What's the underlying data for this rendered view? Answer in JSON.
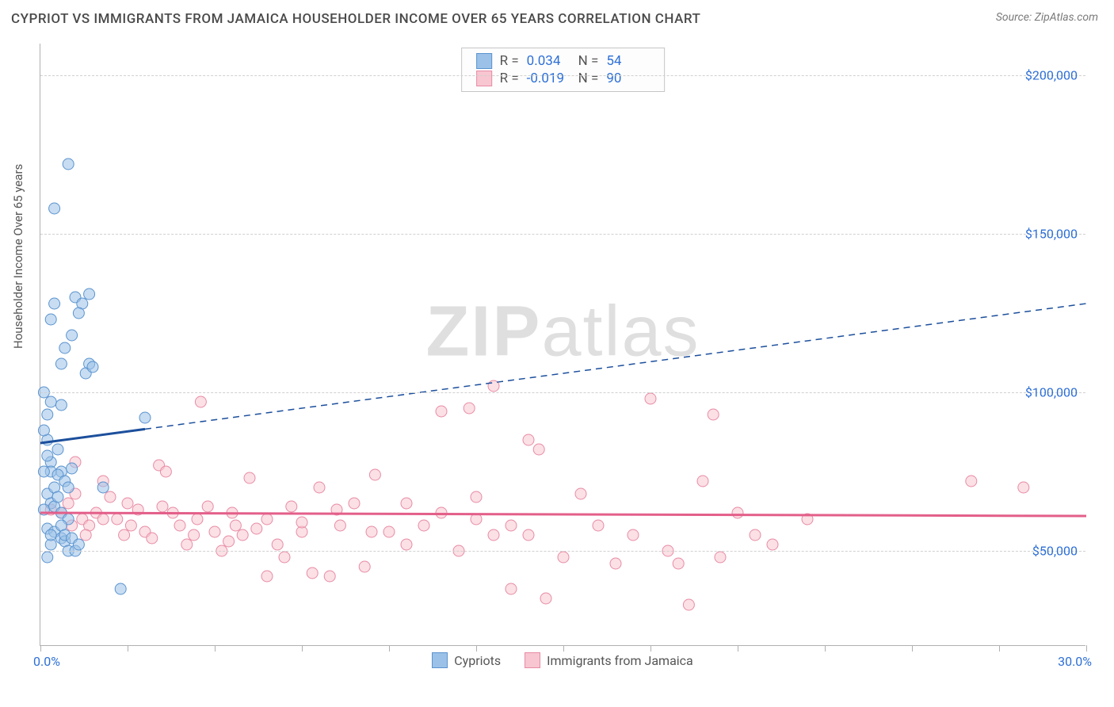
{
  "header": {
    "title": "CYPRIOT VS IMMIGRANTS FROM JAMAICA HOUSEHOLDER INCOME OVER 65 YEARS CORRELATION CHART",
    "source_prefix": "Source: ",
    "source_name": "ZipAtlas.com"
  },
  "axes": {
    "y_label": "Householder Income Over 65 years",
    "x_min_label": "0.0%",
    "x_max_label": "30.0%",
    "xlim": [
      0,
      30
    ],
    "ylim": [
      20000,
      210000
    ],
    "y_ticks": [
      50000,
      100000,
      150000,
      200000
    ],
    "y_tick_labels": [
      "$50,000",
      "$100,000",
      "$150,000",
      "$200,000"
    ],
    "x_tick_positions": [
      0,
      2.5,
      5,
      7.5,
      10,
      12.5,
      15,
      17.5,
      20,
      22.5,
      25,
      27.5,
      30
    ],
    "grid_color": "#d0d0d0",
    "axis_color": "#b0b0b0",
    "tick_label_color": "#2d6fd6"
  },
  "watermark": {
    "part1": "ZIP",
    "part2": "atlas"
  },
  "series": {
    "a": {
      "name": "Cypriots",
      "fill": "#9bc1e8",
      "stroke": "#5a93cf",
      "line_stroke": "#1c4f9c",
      "r_label": "R =",
      "n_label": "N =",
      "r_value": "0.034",
      "n_value": "54",
      "trend": {
        "x1": 0,
        "y1": 84000,
        "x2": 30,
        "y2": 128000,
        "solid_until_x": 3.0
      },
      "points": [
        [
          0.8,
          172000
        ],
        [
          0.4,
          158000
        ],
        [
          0.2,
          85000
        ],
        [
          0.6,
          75000
        ],
        [
          0.3,
          78000
        ],
        [
          1.0,
          130000
        ],
        [
          1.2,
          128000
        ],
        [
          1.4,
          131000
        ],
        [
          1.1,
          125000
        ],
        [
          0.9,
          118000
        ],
        [
          0.4,
          128000
        ],
        [
          0.3,
          123000
        ],
        [
          0.7,
          114000
        ],
        [
          0.6,
          109000
        ],
        [
          1.4,
          109000
        ],
        [
          1.3,
          106000
        ],
        [
          0.1,
          100000
        ],
        [
          0.3,
          97000
        ],
        [
          0.6,
          96000
        ],
        [
          0.2,
          93000
        ],
        [
          0.1,
          88000
        ],
        [
          0.5,
          82000
        ],
        [
          0.2,
          80000
        ],
        [
          0.3,
          75000
        ],
        [
          0.5,
          74000
        ],
        [
          0.7,
          72000
        ],
        [
          0.8,
          70000
        ],
        [
          0.2,
          68000
        ],
        [
          0.3,
          65000
        ],
        [
          0.4,
          64000
        ],
        [
          0.1,
          63000
        ],
        [
          0.6,
          62000
        ],
        [
          0.8,
          60000
        ],
        [
          0.2,
          57000
        ],
        [
          0.4,
          56000
        ],
        [
          0.6,
          54000
        ],
        [
          0.7,
          53000
        ],
        [
          0.3,
          52000
        ],
        [
          0.8,
          50000
        ],
        [
          1.0,
          50000
        ],
        [
          0.2,
          48000
        ],
        [
          0.9,
          76000
        ],
        [
          1.5,
          108000
        ],
        [
          1.8,
          70000
        ],
        [
          3.0,
          92000
        ],
        [
          2.3,
          38000
        ],
        [
          0.1,
          75000
        ],
        [
          0.4,
          70000
        ],
        [
          0.5,
          67000
        ],
        [
          0.6,
          58000
        ],
        [
          0.3,
          55000
        ],
        [
          0.7,
          55000
        ],
        [
          0.9,
          54000
        ],
        [
          1.1,
          52000
        ]
      ]
    },
    "b": {
      "name": "Immigrants from Jamaica",
      "fill": "#f7c6d0",
      "stroke": "#e88ba5",
      "line_stroke": "#e35f8a",
      "r_label": "R =",
      "n_label": "N =",
      "r_value": "-0.019",
      "n_value": "90",
      "trend": {
        "x1": 0,
        "y1": 62000,
        "x2": 30,
        "y2": 61000,
        "solid_until_x": 30
      },
      "points": [
        [
          0.3,
          63000
        ],
        [
          0.6,
          62000
        ],
        [
          0.8,
          65000
        ],
        [
          1.0,
          68000
        ],
        [
          1.2,
          60000
        ],
        [
          1.4,
          58000
        ],
        [
          1.6,
          62000
        ],
        [
          1.8,
          72000
        ],
        [
          2.0,
          67000
        ],
        [
          2.2,
          60000
        ],
        [
          2.4,
          55000
        ],
        [
          2.6,
          58000
        ],
        [
          2.8,
          63000
        ],
        [
          3.0,
          56000
        ],
        [
          3.2,
          54000
        ],
        [
          3.4,
          77000
        ],
        [
          3.6,
          75000
        ],
        [
          3.8,
          62000
        ],
        [
          4.0,
          58000
        ],
        [
          4.2,
          52000
        ],
        [
          4.4,
          55000
        ],
        [
          4.6,
          97000
        ],
        [
          4.8,
          64000
        ],
        [
          5.0,
          56000
        ],
        [
          5.2,
          50000
        ],
        [
          5.4,
          53000
        ],
        [
          5.6,
          58000
        ],
        [
          5.8,
          55000
        ],
        [
          6.0,
          73000
        ],
        [
          6.2,
          57000
        ],
        [
          6.5,
          42000
        ],
        [
          6.8,
          52000
        ],
        [
          7.0,
          48000
        ],
        [
          7.2,
          64000
        ],
        [
          7.5,
          56000
        ],
        [
          7.8,
          43000
        ],
        [
          8.0,
          70000
        ],
        [
          8.3,
          42000
        ],
        [
          8.6,
          58000
        ],
        [
          9.0,
          65000
        ],
        [
          9.3,
          45000
        ],
        [
          9.6,
          74000
        ],
        [
          10.0,
          56000
        ],
        [
          10.5,
          65000
        ],
        [
          11.0,
          58000
        ],
        [
          11.5,
          94000
        ],
        [
          12.0,
          50000
        ],
        [
          12.3,
          95000
        ],
        [
          12.5,
          60000
        ],
        [
          13.0,
          102000
        ],
        [
          13.0,
          55000
        ],
        [
          13.5,
          38000
        ],
        [
          14.0,
          85000
        ],
        [
          14.0,
          55000
        ],
        [
          14.3,
          82000
        ],
        [
          14.5,
          35000
        ],
        [
          15.0,
          48000
        ],
        [
          15.5,
          68000
        ],
        [
          16.0,
          58000
        ],
        [
          16.5,
          46000
        ],
        [
          17.0,
          55000
        ],
        [
          17.5,
          98000
        ],
        [
          18.0,
          50000
        ],
        [
          18.3,
          46000
        ],
        [
          18.6,
          33000
        ],
        [
          19.0,
          72000
        ],
        [
          19.3,
          93000
        ],
        [
          19.5,
          48000
        ],
        [
          20.0,
          62000
        ],
        [
          20.5,
          55000
        ],
        [
          21.0,
          52000
        ],
        [
          22.0,
          60000
        ],
        [
          26.7,
          72000
        ],
        [
          28.2,
          70000
        ],
        [
          1.0,
          78000
        ],
        [
          1.8,
          60000
        ],
        [
          2.5,
          65000
        ],
        [
          3.5,
          64000
        ],
        [
          4.5,
          60000
        ],
        [
          5.5,
          62000
        ],
        [
          6.5,
          60000
        ],
        [
          7.5,
          59000
        ],
        [
          8.5,
          63000
        ],
        [
          9.5,
          56000
        ],
        [
          10.5,
          52000
        ],
        [
          11.5,
          62000
        ],
        [
          12.5,
          67000
        ],
        [
          13.5,
          58000
        ],
        [
          1.3,
          55000
        ],
        [
          0.9,
          58000
        ]
      ]
    }
  },
  "style": {
    "background": "#ffffff",
    "marker_radius": 7,
    "marker_opacity": 0.55,
    "trend_line_width_solid": 3,
    "trend_line_width_dash": 1.5,
    "dash_pattern": "8 6",
    "title_color": "#4a4a4a",
    "label_color": "#555555",
    "source_color": "#7a7a7a"
  }
}
